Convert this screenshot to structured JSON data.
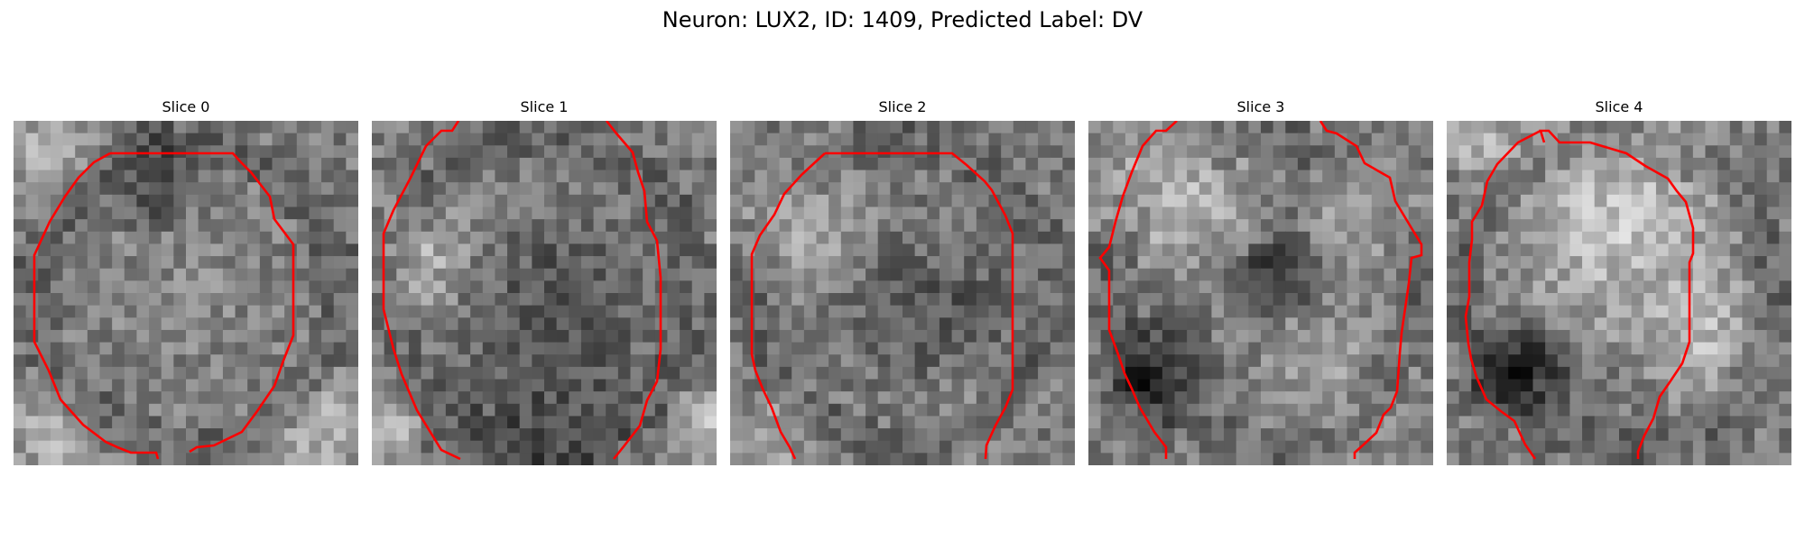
{
  "figure": {
    "title": "Neuron: LUX2, ID: 1409, Predicted Label: DV"
  },
  "colors": {
    "contour": "#ff0000",
    "background": "#ffffff"
  },
  "panels": [
    {
      "title": "Slice 0"
    },
    {
      "title": "Slice 1"
    },
    {
      "title": "Slice 2"
    },
    {
      "title": "Slice 3"
    },
    {
      "title": "Slice 4"
    }
  ]
}
